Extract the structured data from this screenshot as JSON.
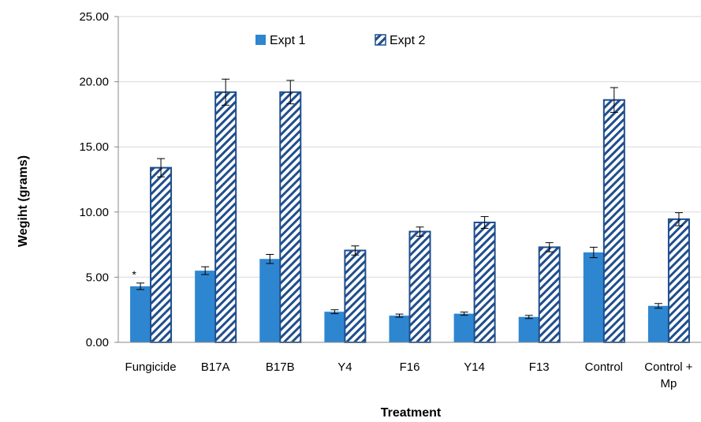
{
  "chart_data": {
    "type": "bar",
    "xlabel": "Treatment",
    "ylabel": "Wegiht (grams)",
    "ylim": [
      0,
      25
    ],
    "yticks": [
      "0.00",
      "5.00",
      "10.00",
      "15.00",
      "20.00",
      "25.00"
    ],
    "ytick_values": [
      0,
      5,
      10,
      15,
      20,
      25
    ],
    "grid": true,
    "legend_position": "top",
    "categories": [
      [
        "Fungicide"
      ],
      [
        "B17A"
      ],
      [
        "B17B"
      ],
      [
        "Y4"
      ],
      [
        "F16"
      ],
      [
        "Y14"
      ],
      [
        "F13"
      ],
      [
        "Control"
      ],
      [
        "Control +",
        "Mp"
      ]
    ],
    "series": [
      {
        "name": "Expt 1",
        "color": "#2e86d0",
        "pattern": "solid",
        "values": [
          4.3,
          5.5,
          6.4,
          2.35,
          2.05,
          2.2,
          1.95,
          6.9,
          2.8
        ],
        "errors": [
          0.25,
          0.3,
          0.35,
          0.15,
          0.12,
          0.12,
          0.12,
          0.4,
          0.18
        ]
      },
      {
        "name": "Expt 2",
        "color": "#1f4e8c",
        "pattern": "hatched",
        "values": [
          13.4,
          19.2,
          19.2,
          7.05,
          8.5,
          9.2,
          7.3,
          18.6,
          9.45
        ],
        "errors": [
          0.7,
          1.0,
          0.9,
          0.35,
          0.35,
          0.45,
          0.35,
          0.95,
          0.5
        ]
      }
    ],
    "annotations": [
      {
        "text": "*",
        "category_index": 0,
        "series_index": 0
      }
    ]
  }
}
